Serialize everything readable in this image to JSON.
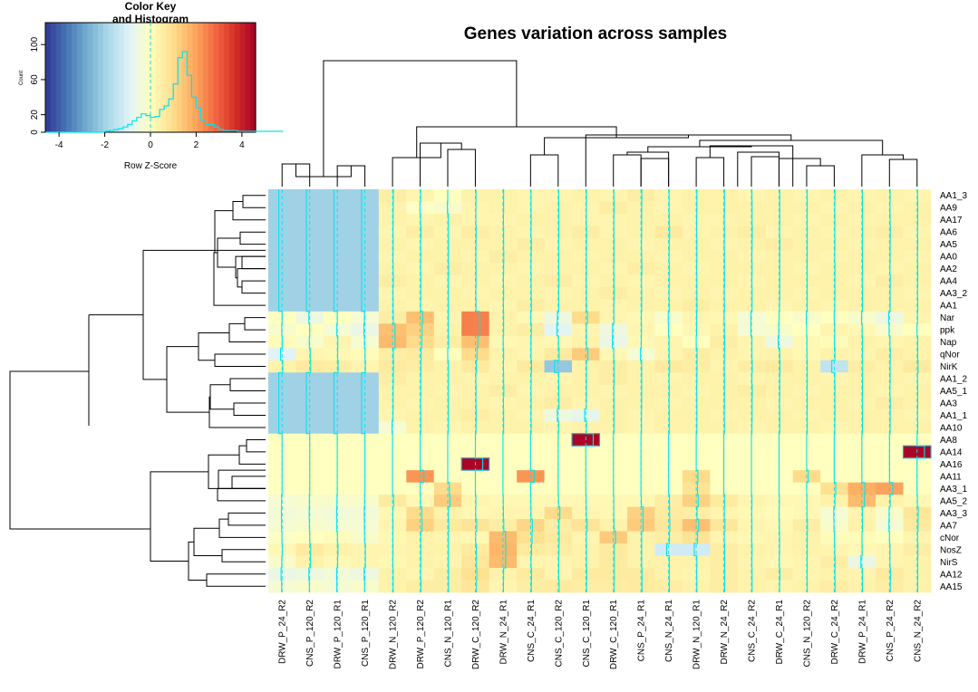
{
  "chart_data": {
    "type": "heatmap",
    "title": "Genes variation across samples",
    "columns": [
      "DRW_P_24_R2",
      "CNS_P_120_R2",
      "DRW_P_120_R1",
      "CNS_P_120_R1",
      "DRW_N_120_R2",
      "DRW_P_120_R2",
      "CNS_N_120_R1",
      "DRW_C_120_R2",
      "DRW_N_24_R1",
      "CNS_C_24_R1",
      "CNS_C_120_R2",
      "CNS_C_120_R1",
      "DRW_C_120_R1",
      "CNS_P_24_R1",
      "CNS_N_24_R1",
      "DRW_N_120_R1",
      "DRW_N_24_R2",
      "CNS_C_24_R2",
      "DRW_C_24_R1",
      "CNS_N_120_R2",
      "DRW_C_24_R2",
      "DRW_P_24_R1",
      "CNS_P_24_R2",
      "CNS_N_24_R2"
    ],
    "rows": [
      "AA1_3",
      "AA9",
      "AA17",
      "AA6",
      "AA5",
      "AA0",
      "AA2",
      "AA4",
      "AA3_2",
      "AA1",
      "Nar",
      "ppk",
      "Nap",
      "qNor",
      "NirK",
      "AA1_2",
      "AA5_1",
      "AA3",
      "AA1_1",
      "AA10",
      "AA8",
      "AA14",
      "AA16",
      "AA11",
      "AA3_1",
      "AA5_2",
      "AA3_3",
      "AA7",
      "cNor",
      "NosZ",
      "NirS",
      "AA12",
      "AA15"
    ],
    "color_scale": [
      "#313695",
      "#4575b4",
      "#74add1",
      "#abd9e9",
      "#e0f3f8",
      "#ffffbf",
      "#fee090",
      "#fdae61",
      "#f46d43",
      "#d73027",
      "#a50026"
    ],
    "zlim": [
      -4.6,
      4.6
    ],
    "key": {
      "title": "Color Key",
      "subtitle": "and Histogram",
      "xlabel": "Row Z-Score",
      "ylabel": "Count",
      "xticks": [
        "-4",
        "-2",
        "0",
        "2",
        "4"
      ],
      "yticks": [
        "0",
        "20",
        "60",
        "100"
      ],
      "xlim": [
        -4.6,
        4.6
      ],
      "ylim": [
        0,
        125
      ],
      "hist_counts": [
        0,
        0,
        0,
        0,
        0,
        0,
        0,
        0,
        0,
        0,
        0,
        0,
        0,
        1,
        2,
        3,
        4,
        6,
        9,
        13,
        17,
        21,
        19,
        17,
        18,
        26,
        30,
        38,
        55,
        85,
        92,
        65,
        40,
        28,
        14,
        9,
        9,
        6,
        3,
        2,
        2,
        2,
        1,
        1,
        1,
        1,
        1,
        1,
        1,
        1,
        1,
        1
      ],
      "hist_bins_from": -4.6,
      "hist_bin_width": 0.2
    },
    "values": [
      [
        -2,
        -2,
        -2,
        -2,
        0.5,
        0.3,
        0,
        0.4,
        0.4,
        0.3,
        0.3,
        0.4,
        0.3,
        0.5,
        0.3,
        0.4,
        0.4,
        0.3,
        0.4,
        0.3,
        0.4,
        0.3,
        0.4,
        0.3
      ],
      [
        -2,
        -2,
        -2,
        -2,
        0.4,
        -0.1,
        -0.2,
        0.3,
        0.4,
        0.3,
        0.4,
        0.3,
        0.5,
        0.4,
        0.3,
        0.4,
        0.4,
        0.4,
        0.4,
        0.4,
        0.3,
        0.4,
        0.3,
        0.4
      ],
      [
        -2,
        -2,
        -2,
        -2,
        0.4,
        0.3,
        0.4,
        0.3,
        0.3,
        0.4,
        0.4,
        0.3,
        0.3,
        0.4,
        0.4,
        0.3,
        0.3,
        0.4,
        0.4,
        0.3,
        0.4,
        0.3,
        0.4,
        0.4
      ],
      [
        -2,
        -2,
        -2,
        -2,
        0.3,
        0.5,
        0.3,
        0.5,
        0.4,
        0.3,
        0.4,
        0.5,
        0.3,
        0.4,
        0.6,
        0.3,
        0.4,
        0.5,
        0.3,
        0.4,
        0.3,
        0.4,
        0.5,
        0.3
      ],
      [
        -2,
        -2,
        -2,
        -2,
        0.4,
        0.3,
        0.4,
        0.4,
        0.4,
        0.5,
        0.3,
        0.4,
        0.4,
        0.3,
        0.4,
        0.4,
        0.3,
        0.4,
        0.5,
        0.4,
        0.4,
        0.3,
        0.4,
        0.4
      ],
      [
        -2,
        -2,
        -2,
        -2,
        0.3,
        0.4,
        0.4,
        0.3,
        0.5,
        0.4,
        0.4,
        0.3,
        0.4,
        0.4,
        0.3,
        0.4,
        0.4,
        0.3,
        0.4,
        0.4,
        0.3,
        0.4,
        0.4,
        0.3
      ],
      [
        -2,
        -2,
        -2,
        -2,
        0.4,
        0.3,
        0.5,
        0.4,
        0.4,
        0.3,
        0.4,
        0.4,
        0.3,
        0.5,
        0.4,
        0.3,
        0.4,
        0.4,
        0.4,
        0.3,
        0.4,
        0.4,
        0.3,
        0.4
      ],
      [
        -2,
        -2,
        -2,
        -2,
        0.5,
        0.4,
        0.3,
        0.4,
        0.3,
        0.4,
        0.5,
        0.3,
        0.4,
        0.3,
        0.4,
        0.4,
        0.4,
        0.3,
        0.4,
        0.4,
        0.4,
        0.3,
        0.5,
        0.4
      ],
      [
        -2,
        -2,
        -2,
        -2,
        0.3,
        0.4,
        0.4,
        0.3,
        0.4,
        0.4,
        0.3,
        0.4,
        0.5,
        0.4,
        0.3,
        0.4,
        0.3,
        0.4,
        0.4,
        0.3,
        0.4,
        0.4,
        0.4,
        0.3
      ],
      [
        -2,
        -2,
        -2,
        -2,
        0.4,
        0.3,
        0.4,
        0.4,
        0.3,
        0.5,
        0.4,
        0.4,
        0.3,
        0.4,
        0.4,
        0.5,
        0.4,
        0.4,
        0.3,
        0.4,
        0.3,
        0.4,
        0.4,
        0.4
      ],
      [
        0,
        -0.5,
        0,
        -0.3,
        0.5,
        1.5,
        0.3,
        2.5,
        0.4,
        0.2,
        -0.5,
        1.0,
        0.3,
        0.2,
        -0.2,
        0.3,
        0.2,
        -0.3,
        0,
        -0.2,
        0,
        -0.2,
        -0.5,
        0.3
      ],
      [
        -0.2,
        0,
        -0.3,
        -0.6,
        1.5,
        1.2,
        0.4,
        2.5,
        0.4,
        0.5,
        -0.8,
        0.3,
        -0.5,
        0.3,
        0,
        0.2,
        0.4,
        -0.3,
        -0.2,
        0,
        0.3,
        0.2,
        -0.2,
        0
      ],
      [
        0.1,
        -0.2,
        0.3,
        -0.3,
        1.6,
        1.0,
        0.5,
        1.5,
        0.2,
        0.3,
        0.2,
        0.4,
        -0.6,
        0.2,
        0.3,
        0,
        0.5,
        0.3,
        -0.5,
        0.2,
        0.1,
        0.4,
        0.3,
        0.4
      ],
      [
        -0.9,
        0.3,
        0.2,
        0.1,
        0.5,
        0.6,
        0,
        1.0,
        0.4,
        0.3,
        0.6,
        1.3,
        0.2,
        -0.3,
        0.3,
        0.5,
        0.4,
        0.3,
        0.4,
        0.2,
        0.4,
        0.3,
        0.5,
        0.4
      ],
      [
        0.4,
        0.6,
        0.5,
        0.3,
        0.6,
        0.5,
        0.4,
        0.6,
        0.3,
        0.6,
        -2.2,
        0.4,
        0.5,
        0.4,
        0.6,
        0.5,
        0.3,
        0.5,
        0.6,
        0.4,
        -1.5,
        0.5,
        0.4,
        0.6
      ],
      [
        -2,
        -2,
        -2,
        -2,
        0.5,
        0.4,
        0.4,
        0.3,
        0.4,
        0.4,
        0.3,
        0.4,
        0.5,
        0.4,
        0.3,
        0.4,
        0.4,
        0.3,
        0.4,
        0.4,
        0.3,
        0.4,
        0.4,
        0.3
      ],
      [
        -2,
        -2,
        -2,
        -2,
        0.4,
        0.4,
        0.3,
        0.4,
        0.5,
        0.3,
        0.4,
        0.4,
        0.3,
        0.4,
        0.4,
        0.3,
        0.4,
        0.5,
        0.4,
        0.3,
        0.4,
        0.4,
        0.3,
        0.4
      ],
      [
        -2,
        -2,
        -2,
        -2,
        0.4,
        0.3,
        0.4,
        0.4,
        0.3,
        0.4,
        0.5,
        0.3,
        0.4,
        0.4,
        0.3,
        0.4,
        0.4,
        0.4,
        0.3,
        0.4,
        0.4,
        0.3,
        0.5,
        0.4
      ],
      [
        -2,
        -2,
        -2,
        -2,
        0.3,
        0.4,
        0.4,
        0.5,
        0.4,
        0.3,
        -0.5,
        -0.7,
        0.4,
        0.3,
        0.4,
        0.4,
        0.3,
        0.4,
        0.4,
        0.3,
        0.4,
        0.4,
        0.4,
        0.3
      ],
      [
        -2,
        -2,
        -2,
        -2,
        -0.3,
        0.4,
        0.3,
        0.4,
        0.4,
        0.4,
        0.3,
        0.4,
        0.4,
        0.3,
        0.4,
        0.4,
        0.4,
        0.3,
        0.4,
        0.4,
        0.3,
        0.4,
        0.4,
        0.4
      ],
      [
        0,
        0,
        0,
        0,
        0,
        0,
        0,
        0,
        0,
        0,
        0,
        0,
        0,
        0,
        0,
        0,
        0,
        0,
        0,
        0,
        0,
        0,
        0,
        0
      ],
      [
        0,
        0,
        0,
        0,
        0,
        0,
        0,
        0,
        0,
        0,
        0,
        0,
        0,
        0,
        0,
        0,
        0,
        0,
        0,
        0,
        0,
        0,
        0,
        0
      ],
      [
        0,
        0,
        0,
        0,
        0,
        0,
        0,
        0,
        0,
        0,
        0,
        0,
        0,
        0,
        0,
        0,
        0,
        0,
        0,
        0,
        0,
        0,
        0,
        0
      ],
      [
        0,
        0,
        0,
        0,
        0,
        0,
        0,
        0,
        0,
        0,
        0,
        0,
        0,
        0,
        0,
        0,
        0,
        0,
        0,
        0,
        0,
        0,
        0,
        0
      ],
      [
        0,
        0,
        0,
        0,
        0,
        0,
        0,
        0,
        0,
        0,
        0,
        0,
        0,
        0,
        0,
        0,
        0,
        0,
        0,
        0,
        0,
        0,
        0,
        0
      ],
      [
        -0.3,
        -0.2,
        -0.2,
        -0.2,
        0.6,
        0.2,
        1.3,
        0.3,
        0.2,
        0.2,
        0.2,
        0.2,
        0.2,
        0.2,
        0.5,
        1.2,
        0.6,
        0.3,
        0.2,
        0.2,
        0.4,
        1.6,
        0.4,
        0.2
      ],
      [
        -0.4,
        -0.3,
        -0.4,
        -0.4,
        0.2,
        1.0,
        0.4,
        0.2,
        0.3,
        0.3,
        1.0,
        0.3,
        0.2,
        1.2,
        0.6,
        0.5,
        0.3,
        0.2,
        0.1,
        0.2,
        -0.3,
        0.3,
        -0.2,
        0.7
      ],
      [
        -0.3,
        -0.2,
        -0.3,
        -0.3,
        0.3,
        1.2,
        0.6,
        0.8,
        0.5,
        1.1,
        0.5,
        0.8,
        0.4,
        1.3,
        0.7,
        1.5,
        0.7,
        0.3,
        0.2,
        0.5,
        -0.2,
        0.4,
        -0.3,
        0.6
      ],
      [
        -0.1,
        0,
        0.1,
        -0.2,
        0.2,
        0.4,
        0.3,
        0.2,
        1.6,
        0.9,
        0.6,
        0.3,
        1.3,
        0.4,
        0.5,
        0.8,
        0.3,
        0.2,
        0.3,
        0.4,
        0.1,
        0.1,
        0,
        0.3
      ],
      [
        0.2,
        0.6,
        0.4,
        0.3,
        0.3,
        0.4,
        0.4,
        0.6,
        1.7,
        0.6,
        0.5,
        0.4,
        0.6,
        0.4,
        -1.2,
        -1.2,
        0.5,
        0.4,
        0.3,
        0.4,
        0.3,
        0.2,
        0.3,
        0.5
      ],
      [
        -0.2,
        0.4,
        0.2,
        0.3,
        0.2,
        0.4,
        0.3,
        0.7,
        1.6,
        0.3,
        0.3,
        0.4,
        0.6,
        0.4,
        0.4,
        0.4,
        0.5,
        0.3,
        0.2,
        0.3,
        0.5,
        -0.6,
        0.3,
        0.4
      ],
      [
        -0.6,
        -0.5,
        -0.4,
        -0.5,
        0.4,
        0.3,
        0.5,
        0.9,
        0.4,
        0.6,
        0.3,
        0.6,
        0.6,
        0.6,
        0.4,
        0.3,
        0.5,
        0.4,
        0.5,
        0.3,
        0.4,
        0.3,
        0.6,
        0.4
      ],
      [
        -0.3,
        -0.2,
        -0.3,
        -0.2,
        0.4,
        0.5,
        0.5,
        0.7,
        0.3,
        0.5,
        0.6,
        0.5,
        0.5,
        0.6,
        0.5,
        0.4,
        0.5,
        0.4,
        0.3,
        0.4,
        0.5,
        0.4,
        0.5,
        0.4
      ]
    ],
    "overrides": [
      {
        "row": "AA8",
        "col": "CNS_C_120_R1",
        "z": 4.5
      },
      {
        "row": "AA14",
        "col": "CNS_N_24_R2",
        "z": 4.5
      },
      {
        "row": "AA16",
        "col": "DRW_C_120_R2",
        "z": 4.5
      },
      {
        "row": "AA11",
        "col": "DRW_P_120_R2",
        "z": 2.2
      },
      {
        "row": "AA11",
        "col": "CNS_C_24_R1",
        "z": 2.2
      },
      {
        "row": "AA11",
        "col": "DRW_N_120_R1",
        "z": 1.0
      },
      {
        "row": "AA11",
        "col": "CNS_N_120_R2",
        "z": 1.0
      },
      {
        "row": "AA3_1",
        "col": "CNS_N_120_R1",
        "z": 1.0
      },
      {
        "row": "AA3_1",
        "col": "DRW_N_120_R1",
        "z": 0.8
      },
      {
        "row": "AA3_1",
        "col": "DRW_P_24_R1",
        "z": 1.8
      },
      {
        "row": "AA3_1",
        "col": "CNS_P_24_R2",
        "z": 2.0
      },
      {
        "row": "AA3_1",
        "col": "DRW_C_24_R2",
        "z": 0.9
      }
    ]
  }
}
